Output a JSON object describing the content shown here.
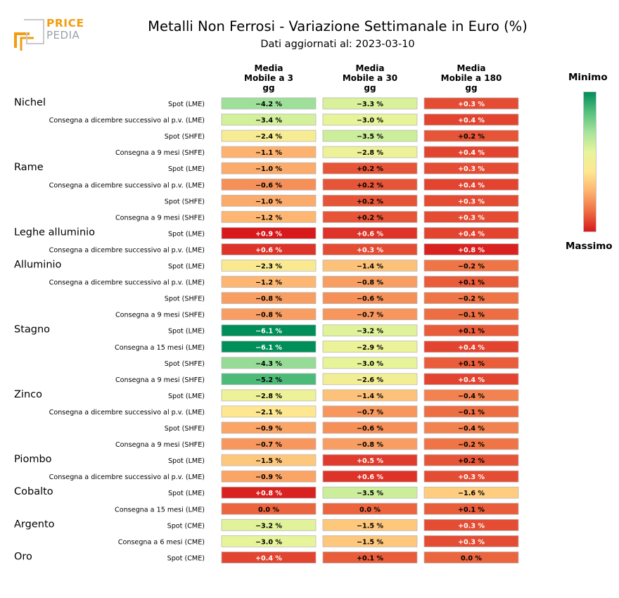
{
  "logo": {
    "line1": "PRICE",
    "line2": "PEDIA"
  },
  "title": "Metalli Non Ferrosi - Variazione Settimanale in Euro (%)",
  "subtitle": "Dati aggiornati al: 2023-03-10",
  "legend": {
    "min_label": "Minimo",
    "max_label": "Massimo",
    "colors": [
      "#d7191c",
      "#ed6e43",
      "#fdb26f",
      "#fee790",
      "#e6f59a",
      "#a6e39c",
      "#55c07c",
      "#008e59"
    ]
  },
  "chart_data": {
    "type": "heatmap",
    "columns": [
      [
        "Media",
        "Mobile a 3",
        "gg"
      ],
      [
        "Media",
        "Mobile a 30",
        "gg"
      ],
      [
        "Media",
        "Mobile a 180",
        "gg"
      ]
    ],
    "rows": [
      {
        "group": "Nichel",
        "label": "Spot (LME)",
        "values": [
          -4.2,
          -3.3,
          0.3
        ]
      },
      {
        "group": "",
        "label": "Consegna a dicembre successivo al p.v. (LME)",
        "values": [
          -3.4,
          -3.0,
          0.4
        ]
      },
      {
        "group": "",
        "label": "Spot (SHFE)",
        "values": [
          -2.4,
          -3.5,
          0.2
        ]
      },
      {
        "group": "",
        "label": "Consegna a 9 mesi (SHFE)",
        "values": [
          -1.1,
          -2.8,
          0.4
        ]
      },
      {
        "group": "Rame",
        "label": "Spot (LME)",
        "values": [
          -1.0,
          0.2,
          0.3
        ]
      },
      {
        "group": "",
        "label": "Consegna a dicembre successivo al p.v. (LME)",
        "values": [
          -0.6,
          0.2,
          0.4
        ]
      },
      {
        "group": "",
        "label": "Spot (SHFE)",
        "values": [
          -1.0,
          0.2,
          0.3
        ]
      },
      {
        "group": "",
        "label": "Consegna a 9 mesi (SHFE)",
        "values": [
          -1.2,
          0.2,
          0.3
        ]
      },
      {
        "group": "Leghe alluminio",
        "label": "Spot (LME)",
        "values": [
          0.9,
          0.6,
          0.4
        ]
      },
      {
        "group": "",
        "label": "Consegna a dicembre successivo al p.v. (LME)",
        "values": [
          0.6,
          0.3,
          0.8
        ]
      },
      {
        "group": "Alluminio",
        "label": "Spot (LME)",
        "values": [
          -2.3,
          -1.4,
          -0.2
        ]
      },
      {
        "group": "",
        "label": "Consegna a dicembre successivo al p.v. (LME)",
        "values": [
          -1.2,
          -0.8,
          0.1
        ]
      },
      {
        "group": "",
        "label": "Spot (SHFE)",
        "values": [
          -0.8,
          -0.6,
          -0.2
        ]
      },
      {
        "group": "",
        "label": "Consegna a 9 mesi (SHFE)",
        "values": [
          -0.8,
          -0.7,
          -0.1
        ]
      },
      {
        "group": "Stagno",
        "label": "Spot (LME)",
        "values": [
          -6.1,
          -3.2,
          0.1
        ]
      },
      {
        "group": "",
        "label": "Consegna a 15 mesi (LME)",
        "values": [
          -6.1,
          -2.9,
          0.4
        ]
      },
      {
        "group": "",
        "label": "Spot (SHFE)",
        "values": [
          -4.3,
          -3.0,
          0.1
        ]
      },
      {
        "group": "",
        "label": "Consegna a 9 mesi (SHFE)",
        "values": [
          -5.2,
          -2.6,
          0.4
        ]
      },
      {
        "group": "Zinco",
        "label": "Spot (LME)",
        "values": [
          -2.8,
          -1.4,
          -0.4
        ]
      },
      {
        "group": "",
        "label": "Consegna a dicembre successivo al p.v. (LME)",
        "values": [
          -2.1,
          -0.7,
          -0.1
        ]
      },
      {
        "group": "",
        "label": "Spot (SHFE)",
        "values": [
          -0.9,
          -0.6,
          -0.4
        ]
      },
      {
        "group": "",
        "label": "Consegna a 9 mesi (SHFE)",
        "values": [
          -0.7,
          -0.8,
          -0.2
        ]
      },
      {
        "group": "Piombo",
        "label": "Spot (LME)",
        "values": [
          -1.5,
          0.5,
          0.2
        ]
      },
      {
        "group": "",
        "label": "Consegna a dicembre successivo al p.v. (LME)",
        "values": [
          -0.9,
          0.6,
          0.3
        ]
      },
      {
        "group": "Cobalto",
        "label": "Spot (LME)",
        "values": [
          0.8,
          -3.5,
          -1.6
        ]
      },
      {
        "group": "",
        "label": "Consegna a 15 mesi (LME)",
        "values": [
          0.0,
          0.0,
          0.1
        ]
      },
      {
        "group": "Argento",
        "label": "Spot (CME)",
        "values": [
          -3.2,
          -1.5,
          0.3
        ]
      },
      {
        "group": "",
        "label": "Consegna a 6 mesi (CME)",
        "values": [
          -3.0,
          -1.5,
          0.3
        ]
      },
      {
        "group": "Oro",
        "label": "Spot (CME)",
        "values": [
          0.4,
          0.1,
          0.0
        ]
      }
    ],
    "value_format": "signed percent, 1 decimal",
    "color_scale": "diverging RdYlGn (green = minimum / most negative, red = maximum / most positive)"
  }
}
